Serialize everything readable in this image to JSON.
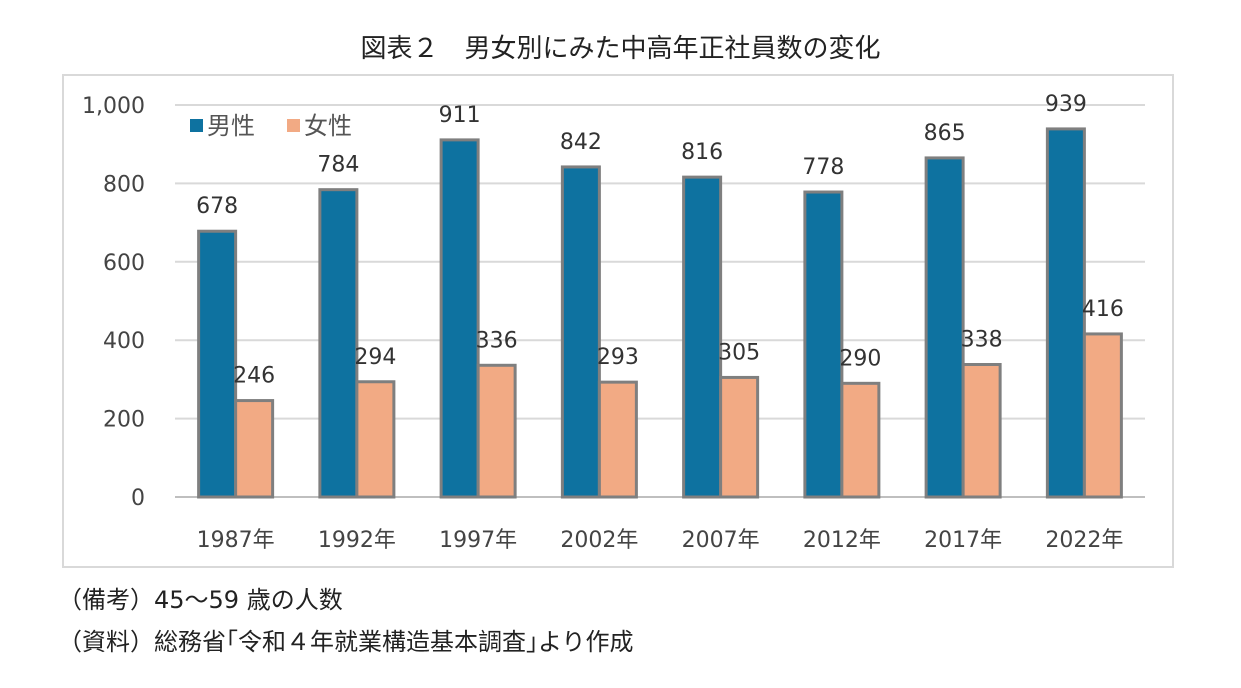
{
  "title": "図表２　男女別にみた中高年正社員数の変化",
  "notes": {
    "remarks": "（備考）45～59 歳の人数",
    "source": "（資料）総務省｢令和４年就業構造基本調査｣より作成"
  },
  "chart_data": {
    "type": "bar",
    "categories": [
      "1987年",
      "1992年",
      "1997年",
      "2002年",
      "2007年",
      "2012年",
      "2017年",
      "2022年"
    ],
    "series": [
      {
        "name": "男性",
        "color": "#0e72a0",
        "values": [
          678,
          784,
          911,
          842,
          816,
          778,
          865,
          939
        ]
      },
      {
        "name": "女性",
        "color": "#f2aa84",
        "values": [
          246,
          294,
          336,
          293,
          305,
          290,
          338,
          416
        ]
      }
    ],
    "yticks": [
      "0",
      "200",
      "400",
      "600",
      "800",
      "1,000"
    ],
    "ylim": [
      0,
      1000
    ],
    "grid": true,
    "legend": "top-left"
  }
}
